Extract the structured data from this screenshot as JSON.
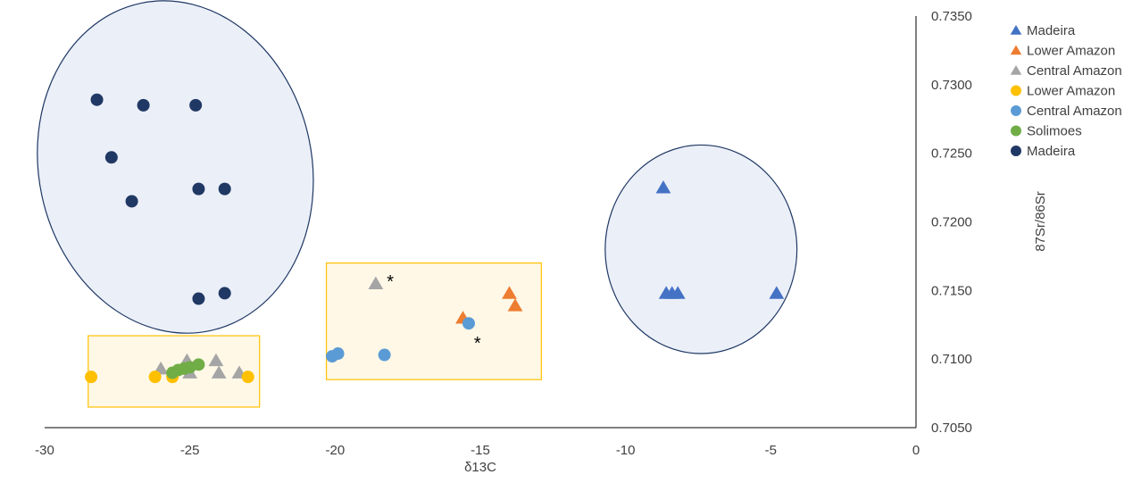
{
  "chart_data": {
    "type": "scatter",
    "xlabel": "δ13C",
    "ylabel": "87Sr/86Sr",
    "xlim": [
      -30,
      0
    ],
    "ylim": [
      0.705,
      0.735
    ],
    "x_ticks": [
      "-30",
      "-25",
      "-20",
      "-15",
      "-10",
      "-5",
      "0"
    ],
    "y_ticks": [
      "0.7050",
      "0.7100",
      "0.7150",
      "0.7200",
      "0.7250",
      "0.7300",
      "0.7350"
    ],
    "grid": false,
    "legend_position": "right",
    "series": [
      {
        "name": "Madeira",
        "marker": "triangle",
        "color": "#4472C4",
        "points": [
          [
            -8.7,
            0.7225
          ],
          [
            -8.6,
            0.7148
          ],
          [
            -8.4,
            0.7148
          ],
          [
            -8.2,
            0.7148
          ],
          [
            -4.8,
            0.7148
          ]
        ]
      },
      {
        "name": "Lower Amazon",
        "marker": "triangle",
        "color": "#ED7D31",
        "points": [
          [
            -15.6,
            0.713
          ],
          [
            -14.0,
            0.7148
          ],
          [
            -13.8,
            0.7139
          ]
        ]
      },
      {
        "name": "Central Amazon",
        "marker": "triangle",
        "color": "#A5A5A5",
        "points": [
          [
            -18.6,
            0.7155
          ],
          [
            -26.0,
            0.7093
          ],
          [
            -25.1,
            0.7099
          ],
          [
            -25.0,
            0.709
          ],
          [
            -24.1,
            0.7099
          ],
          [
            -24.0,
            0.709
          ],
          [
            -23.3,
            0.709
          ]
        ]
      },
      {
        "name": "Lower Amazon",
        "marker": "circle",
        "color": "#FFC000",
        "points": [
          [
            -28.4,
            0.7087
          ],
          [
            -26.2,
            0.7087
          ],
          [
            -25.6,
            0.7087
          ],
          [
            -23.0,
            0.7087
          ]
        ]
      },
      {
        "name": "Central Amazon",
        "marker": "circle",
        "color": "#5B9BD5",
        "points": [
          [
            -20.1,
            0.7102
          ],
          [
            -19.9,
            0.7104
          ],
          [
            -18.3,
            0.7103
          ],
          [
            -15.4,
            0.7126
          ]
        ]
      },
      {
        "name": "Solimoes",
        "marker": "circle",
        "color": "#70AD47",
        "points": [
          [
            -25.6,
            0.709
          ],
          [
            -25.4,
            0.7092
          ],
          [
            -25.2,
            0.7093
          ],
          [
            -25.0,
            0.7094
          ],
          [
            -24.7,
            0.7096
          ]
        ]
      },
      {
        "name": "Madeira",
        "marker": "circle",
        "color": "#203864",
        "points": [
          [
            -28.2,
            0.7289
          ],
          [
            -26.6,
            0.7285
          ],
          [
            -24.8,
            0.7285
          ],
          [
            -27.7,
            0.7247
          ],
          [
            -27.0,
            0.7215
          ],
          [
            -24.7,
            0.7224
          ],
          [
            -23.8,
            0.7224
          ],
          [
            -24.7,
            0.7144
          ],
          [
            -23.8,
            0.7148
          ]
        ]
      }
    ],
    "annotations": [
      {
        "text": "*",
        "x": -18.1,
        "y": 0.716
      },
      {
        "text": "*",
        "x": -15.1,
        "y": 0.7115
      }
    ],
    "highlight_rectangles": [
      {
        "x": [
          -28.5,
          -22.6
        ],
        "y": [
          0.7065,
          0.7117
        ]
      },
      {
        "x": [
          -20.3,
          -12.9
        ],
        "y": [
          0.7085,
          0.717
        ]
      }
    ],
    "highlight_ellipses": [
      {
        "cx": -25.5,
        "cy": 0.724,
        "rx": 4.7,
        "ry": 0.0122
      },
      {
        "cx": -7.4,
        "cy": 0.718,
        "rx": 3.3,
        "ry": 0.0076
      }
    ]
  }
}
